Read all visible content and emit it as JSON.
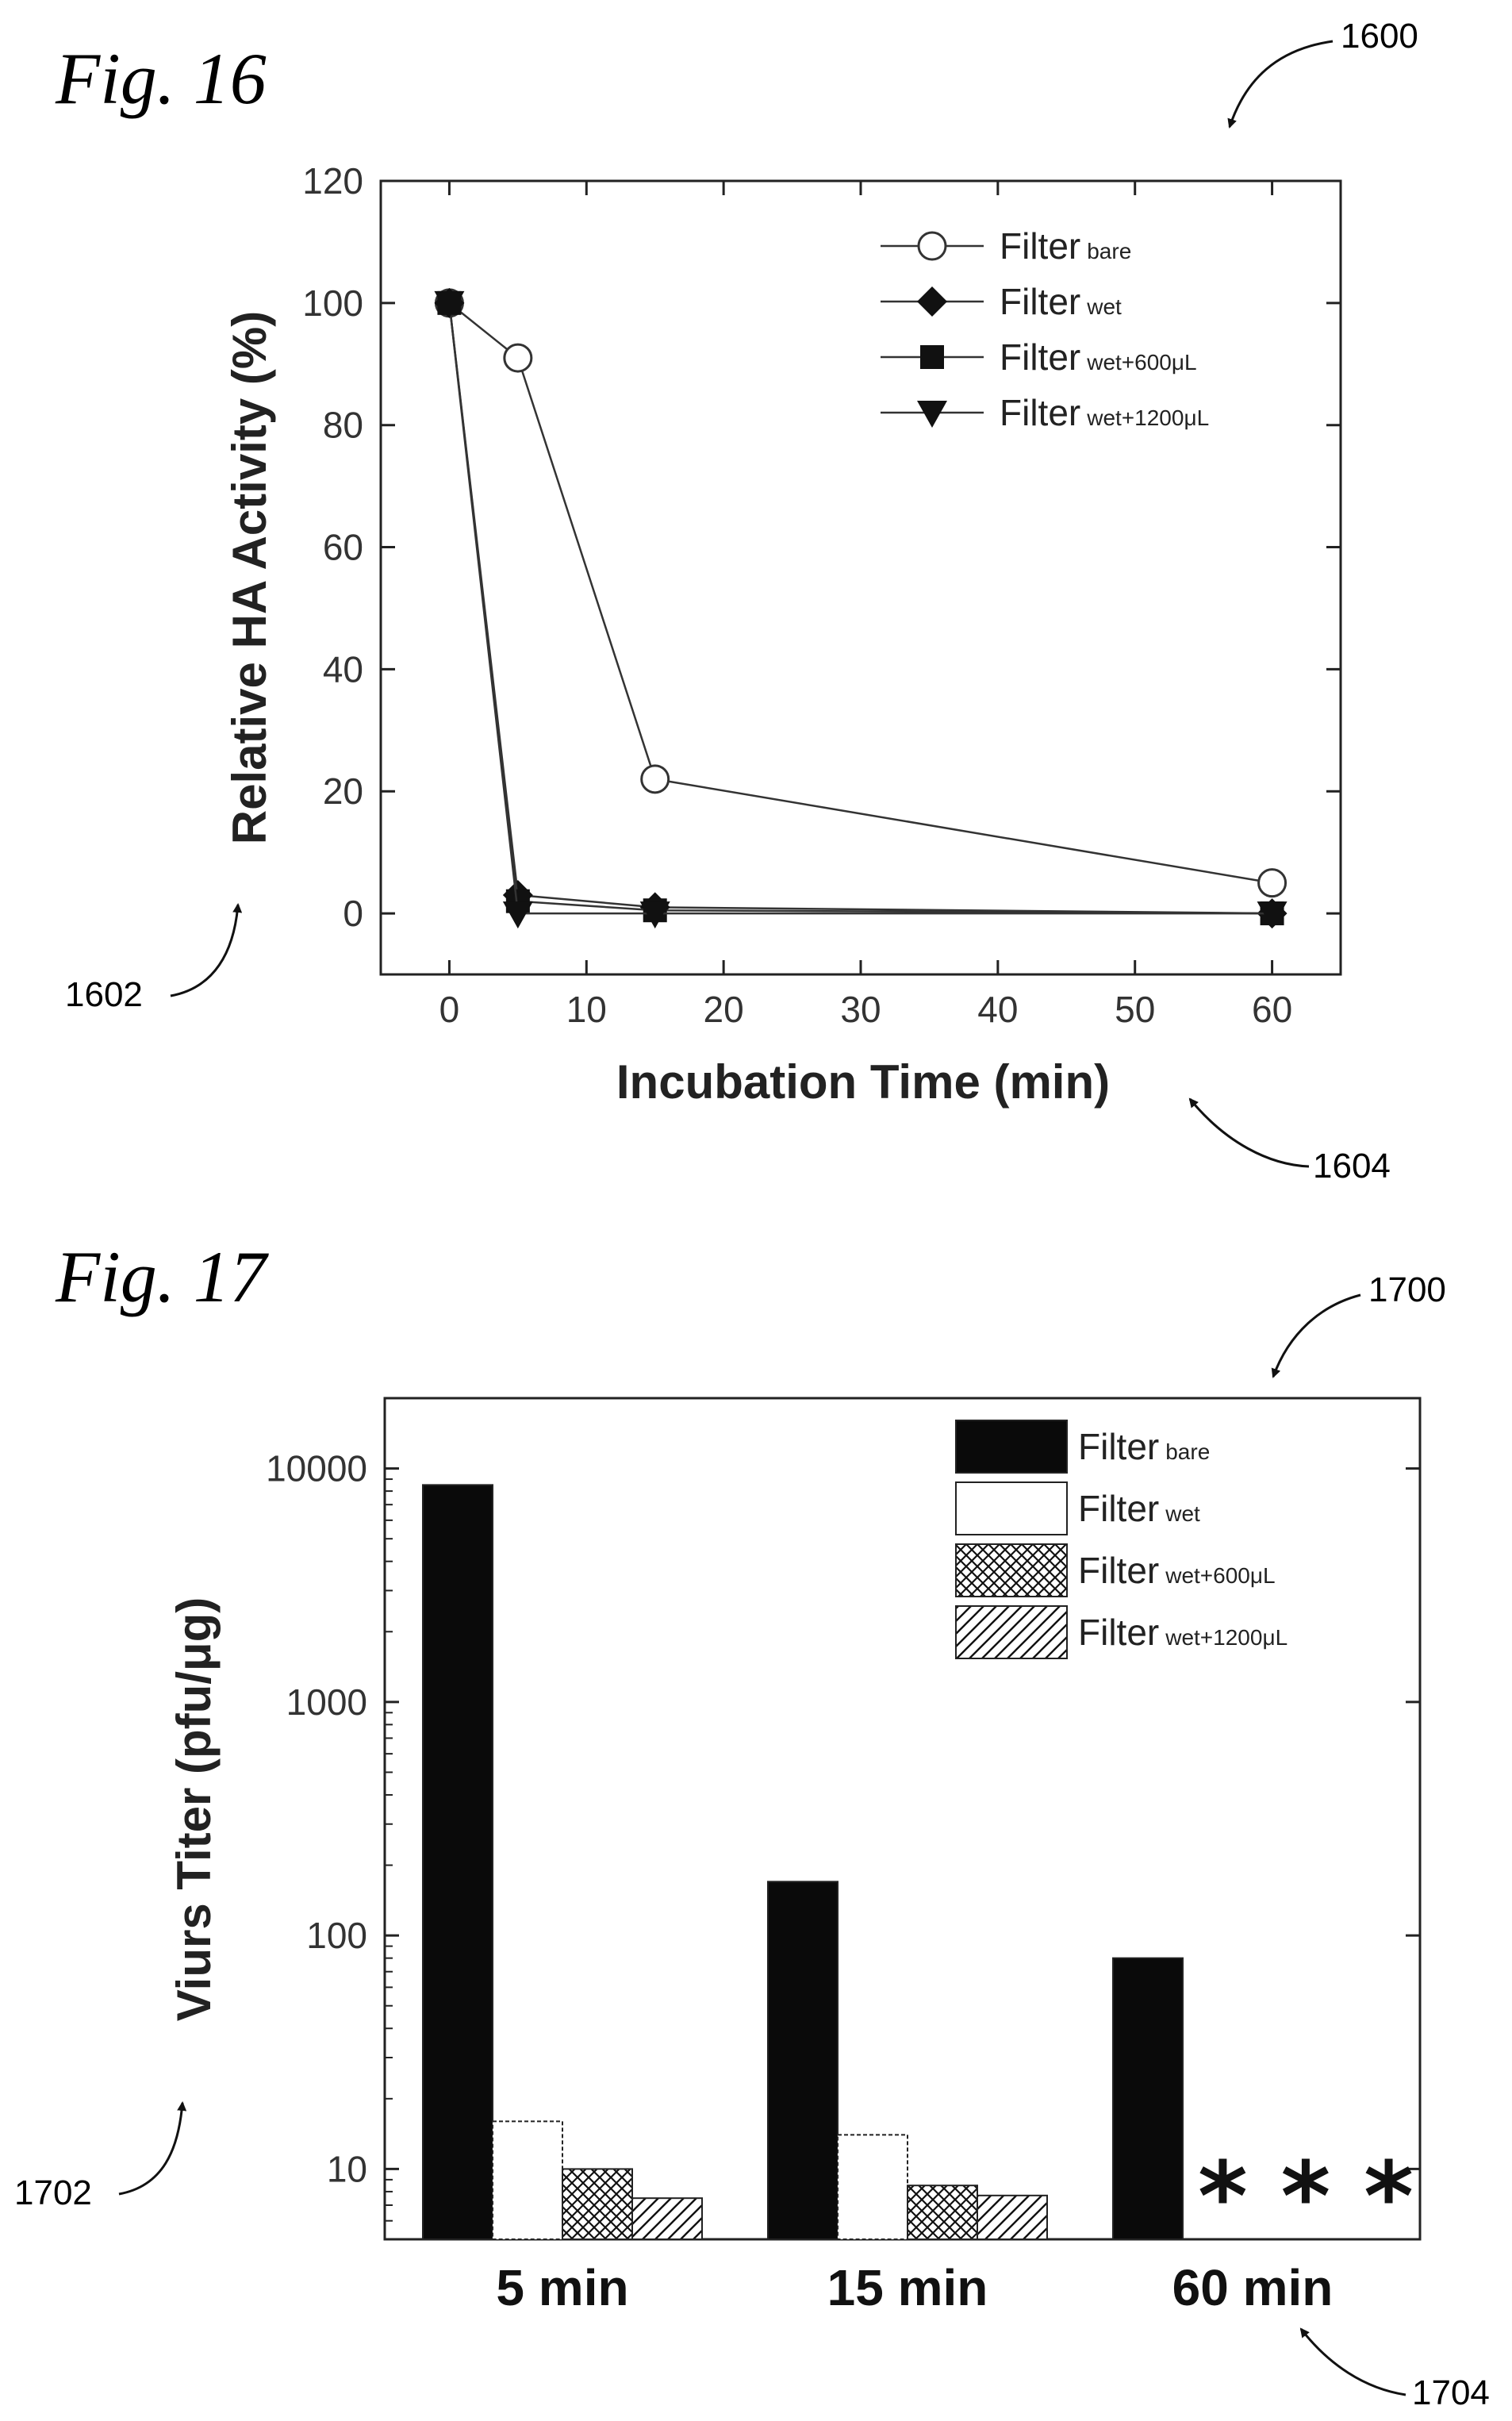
{
  "fig16": {
    "label": "Fig. 16",
    "ref_figure": "1600",
    "ref_ylabel": "1602",
    "ref_xlabel": "1604"
  },
  "fig17": {
    "label": "Fig. 17",
    "ref_figure": "1700",
    "ref_ylabel": "1702",
    "ref_xlabel": "1704",
    "asterisks": "* * *"
  },
  "chart_data": [
    {
      "type": "line",
      "xlabel": "Incubation Time (min)",
      "ylabel": "Relative HA Activity (%)",
      "xlim": [
        -5,
        65
      ],
      "ylim": [
        -10,
        120
      ],
      "xticks": [
        0,
        10,
        20,
        30,
        40,
        50,
        60
      ],
      "yticks": [
        0,
        20,
        40,
        60,
        80,
        100,
        120
      ],
      "legend_position": "top-right",
      "series": [
        {
          "name": "Filter",
          "sub": "bare",
          "marker": "open-circle",
          "x": [
            0,
            5,
            15,
            60
          ],
          "y": [
            100,
            91,
            22,
            5
          ]
        },
        {
          "name": "Filter",
          "sub": "wet",
          "marker": "diamond",
          "x": [
            0,
            5,
            15,
            60
          ],
          "y": [
            100,
            3,
            1,
            0
          ]
        },
        {
          "name": "Filter",
          "sub": "wet+600μL",
          "marker": "square",
          "x": [
            0,
            5,
            15,
            60
          ],
          "y": [
            100,
            2,
            0.5,
            0
          ]
        },
        {
          "name": "Filter",
          "sub": "wet+1200μL",
          "marker": "triangle-down",
          "x": [
            0,
            5,
            15,
            60
          ],
          "y": [
            100,
            0,
            0,
            0
          ]
        }
      ]
    },
    {
      "type": "bar",
      "xlabel": "",
      "ylabel": "Viurs Titer (pfu/μg)",
      "yscale": "log",
      "ylim": [
        5,
        20000
      ],
      "yticks": [
        10,
        100,
        1000,
        10000
      ],
      "categories": [
        "5 min",
        "15 min",
        "60 min"
      ],
      "legend_position": "top-right",
      "series": [
        {
          "name": "Filter",
          "sub": "bare",
          "fill": "solid-black",
          "values": [
            8500,
            170,
            80
          ]
        },
        {
          "name": "Filter",
          "sub": "wet",
          "fill": "white",
          "values": [
            16,
            14,
            null
          ]
        },
        {
          "name": "Filter",
          "sub": "wet+600μL",
          "fill": "crosshatch",
          "values": [
            10,
            8.5,
            null
          ]
        },
        {
          "name": "Filter",
          "sub": "wet+1200μL",
          "fill": "diagonal-hatch",
          "values": [
            7.5,
            7.7,
            null
          ]
        }
      ]
    }
  ]
}
